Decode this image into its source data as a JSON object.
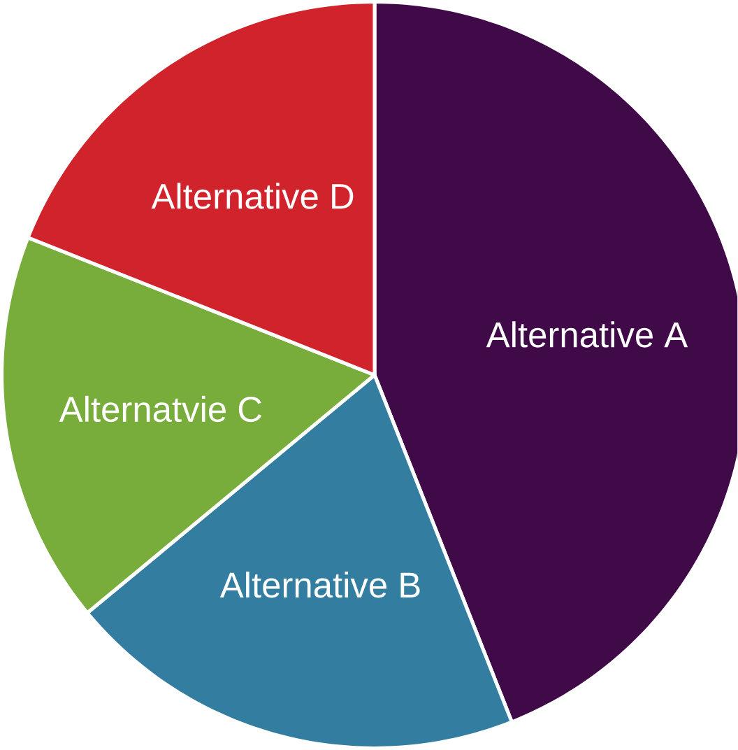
{
  "chart_data": {
    "type": "pie",
    "categories": [
      "Alternative A",
      "Alternative B",
      "Alternatvie C",
      "Alternative D"
    ],
    "values": [
      44,
      20,
      17,
      19
    ],
    "colors": [
      "#3f0a47",
      "#337ea0",
      "#79ad3b",
      "#d0232c"
    ]
  }
}
